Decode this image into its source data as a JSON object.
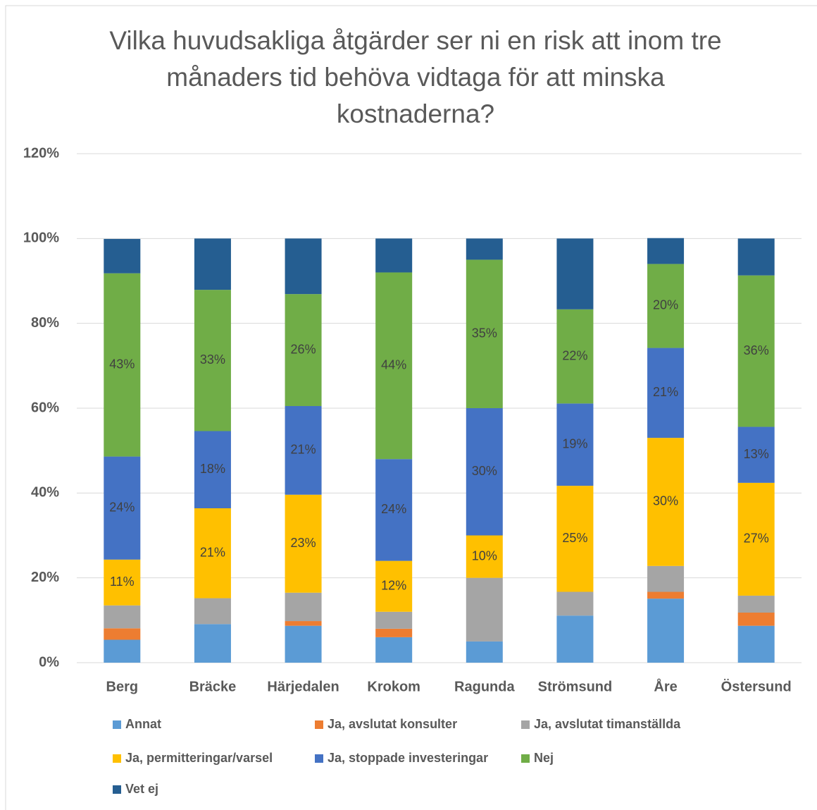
{
  "chart_data": {
    "type": "stacked_bar",
    "title": "Vilka huvudsakliga åtgärder ser ni en risk att inom tre månaders tid behöva vidtaga för att minska kostnaderna?",
    "categories": [
      "Berg",
      "Bräcke",
      "Härjedalen",
      "Krokom",
      "Ragunda",
      "Strömsund",
      "Åre",
      "Östersund"
    ],
    "series": [
      {
        "name": "Annat",
        "color": "#5b9bd5",
        "values": [
          5.4,
          9.1,
          8.7,
          6,
          5,
          11.1,
          15.1,
          8.7
        ]
      },
      {
        "name": "Ja, avslutat konsulter",
        "color": "#ed7d31",
        "values": [
          2.7,
          0,
          1.1,
          2,
          0,
          0,
          1.6,
          3.1
        ]
      },
      {
        "name": "Ja, avslutat timanställda",
        "color": "#a5a5a5",
        "values": [
          5.4,
          6.1,
          6.7,
          4,
          15,
          5.6,
          6.1,
          4
        ]
      },
      {
        "name": "Ja, permitteringar/varsel",
        "color": "#ffc000",
        "values": [
          10.8,
          21.2,
          23.1,
          12,
          10,
          25,
          30.2,
          26.6
        ],
        "value_labels": [
          "11%",
          "21%",
          "23%",
          "12%",
          "10%",
          "25%",
          "30%",
          "27%"
        ]
      },
      {
        "name": "Ja, stoppade investeringar",
        "color": "#4472c4",
        "values": [
          24.3,
          18.2,
          20.9,
          24,
          30,
          19.4,
          21.2,
          13.2
        ],
        "value_labels": [
          "24%",
          "18%",
          "21%",
          "24%",
          "30%",
          "19%",
          "21%",
          "13%"
        ]
      },
      {
        "name": "Nej",
        "color": "#70ad47",
        "values": [
          43.2,
          33.3,
          26.4,
          44,
          35,
          22.2,
          19.8,
          35.7
        ],
        "value_labels": [
          "43%",
          "33%",
          "26%",
          "44%",
          "35%",
          "22%",
          "20%",
          "36%"
        ]
      },
      {
        "name": "Vet ej",
        "color": "#255e91",
        "values": [
          8.1,
          12.1,
          13.1,
          8,
          5,
          16.7,
          6.1,
          8.7
        ]
      }
    ],
    "ylim": [
      0,
      120
    ],
    "yticks": [
      {
        "value": 0,
        "label": "0%"
      },
      {
        "value": 20,
        "label": "20%"
      },
      {
        "value": 40,
        "label": "40%"
      },
      {
        "value": 60,
        "label": "60%"
      },
      {
        "value": 80,
        "label": "80%"
      },
      {
        "value": 100,
        "label": "100%"
      },
      {
        "value": 120,
        "label": "120%"
      }
    ],
    "grid": true,
    "legend": "bottom"
  }
}
